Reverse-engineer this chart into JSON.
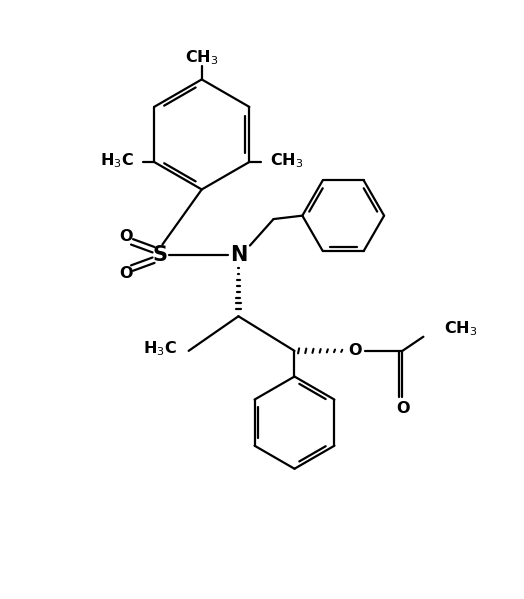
{
  "bg": "#ffffff",
  "lc": "#000000",
  "lw": 1.6,
  "fs": 11.5,
  "xlim": [
    0,
    10
  ],
  "ylim": [
    0,
    11.4
  ]
}
